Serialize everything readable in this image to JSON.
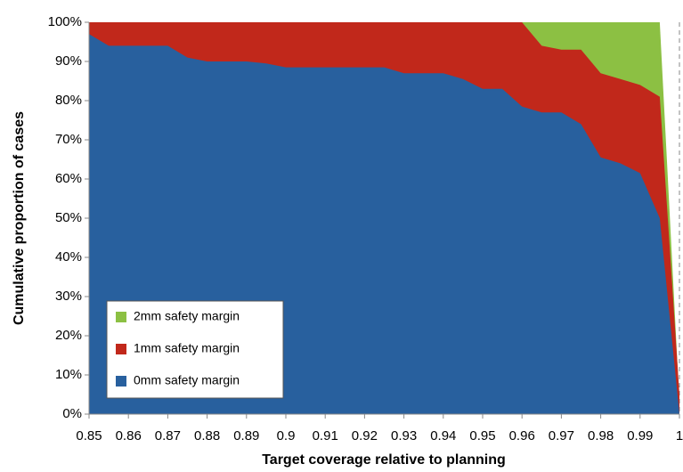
{
  "chart_data": {
    "type": "area",
    "x_label": "Target coverage relative to planning",
    "y_label": "Cumulative proportion of cases",
    "x": [
      0.85,
      0.855,
      0.86,
      0.865,
      0.87,
      0.875,
      0.88,
      0.885,
      0.89,
      0.895,
      0.9,
      0.905,
      0.91,
      0.915,
      0.92,
      0.925,
      0.93,
      0.935,
      0.94,
      0.945,
      0.95,
      0.955,
      0.96,
      0.965,
      0.97,
      0.975,
      0.98,
      0.985,
      0.99,
      0.995,
      1.0
    ],
    "series": [
      {
        "name": "2mm safety margin",
        "color": "#8cc043",
        "values": [
          100,
          100,
          100,
          100,
          100,
          100,
          100,
          100,
          100,
          100,
          100,
          100,
          100,
          100,
          100,
          100,
          100,
          100,
          100,
          100,
          100,
          100,
          100,
          100,
          100,
          100,
          100,
          100,
          100,
          100,
          3
        ]
      },
      {
        "name": "1mm safety margin",
        "color": "#c1281b",
        "values": [
          100,
          100,
          100,
          100,
          100,
          100,
          100,
          100,
          100,
          100,
          100,
          100,
          100,
          100,
          100,
          100,
          100,
          100,
          100,
          100,
          100,
          100,
          100,
          94,
          93,
          93,
          87,
          85.5,
          84,
          81,
          5
        ]
      },
      {
        "name": "0mm safety margin",
        "color": "#28609e",
        "values": [
          97,
          94,
          94,
          94,
          94,
          91,
          90,
          90,
          90,
          89.5,
          88.5,
          88.5,
          88.5,
          88.5,
          88.5,
          88.5,
          87,
          87,
          87,
          85.5,
          83,
          83,
          78.5,
          77,
          77,
          74,
          65.5,
          64,
          61.5,
          50,
          0
        ]
      }
    ],
    "xlim": [
      0.85,
      1
    ],
    "xticks": [
      0.85,
      0.86,
      0.87,
      0.88,
      0.89,
      0.9,
      0.91,
      0.92,
      0.93,
      0.94,
      0.95,
      0.96,
      0.97,
      0.98,
      0.99,
      1
    ],
    "ylim": [
      0,
      100
    ],
    "yticks": [
      {
        "value": 0,
        "label": "0%"
      },
      {
        "value": 10,
        "label": "10%"
      },
      {
        "value": 20,
        "label": "20%"
      },
      {
        "value": 30,
        "label": "30%"
      },
      {
        "value": 40,
        "label": "40%"
      },
      {
        "value": 50,
        "label": "50%"
      },
      {
        "value": 60,
        "label": "60%"
      },
      {
        "value": 70,
        "label": "70%"
      },
      {
        "value": 80,
        "label": "80%"
      },
      {
        "value": 90,
        "label": "90%"
      },
      {
        "value": 100,
        "label": "100%"
      }
    ],
    "grid": true,
    "legend_position": "lower-left"
  }
}
